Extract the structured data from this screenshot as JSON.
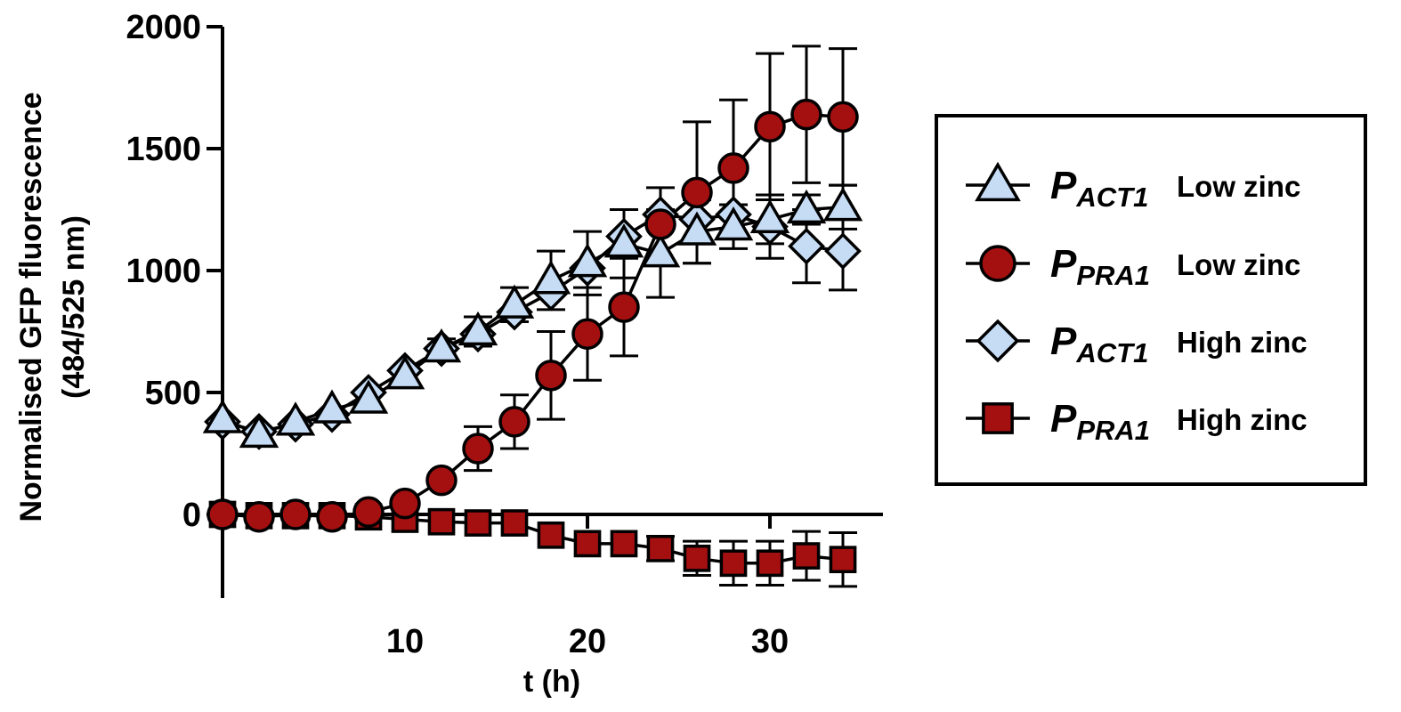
{
  "chart_data": {
    "type": "line",
    "xlabel": "t (h)",
    "ylabel_line1": "Normalised GFP fluorescence",
    "ylabel_line2": "(484/525 nm)",
    "xlim": [
      0,
      35
    ],
    "ylim": [
      -350,
      2000
    ],
    "x_ticks": [
      10,
      20,
      30
    ],
    "y_ticks": [
      0,
      500,
      1000,
      1500,
      2000
    ],
    "grid": false,
    "legend_position": "right",
    "colors": {
      "light_blue": "#c6dcf5",
      "dark_red": "#a40f10",
      "stroke": "#000000"
    },
    "x": [
      0,
      2,
      4,
      6,
      8,
      10,
      12,
      14,
      16,
      18,
      20,
      22,
      24,
      26,
      28,
      30,
      32,
      34
    ],
    "series": [
      {
        "name_main": "P",
        "name_sub": "ACT1",
        "name_cond": "Low zinc",
        "marker": "triangle",
        "color": "#c6dcf5",
        "values": [
          390,
          330,
          380,
          430,
          470,
          570,
          680,
          750,
          860,
          960,
          1030,
          1110,
          1070,
          1160,
          1180,
          1210,
          1250,
          1260
        ],
        "errors": [
          0,
          0,
          0,
          0,
          0,
          0,
          40,
          60,
          70,
          120,
          130,
          140,
          180,
          130,
          90,
          100,
          60,
          90
        ]
      },
      {
        "name_main": "P",
        "name_sub": "PRA1",
        "name_cond": "Low zinc",
        "marker": "circle",
        "color": "#a40f10",
        "values": [
          0,
          -10,
          0,
          -10,
          10,
          45,
          140,
          270,
          380,
          570,
          740,
          850,
          1190,
          1320,
          1420,
          1590,
          1640,
          1630
        ],
        "errors": [
          0,
          0,
          0,
          0,
          0,
          0,
          0,
          90,
          110,
          180,
          190,
          200,
          150,
          290,
          280,
          300,
          280,
          280
        ]
      },
      {
        "name_main": "P",
        "name_sub": "ACT1",
        "name_cond": "High zinc",
        "marker": "diamond",
        "color": "#c6dcf5",
        "values": [
          380,
          340,
          370,
          410,
          500,
          590,
          680,
          740,
          830,
          910,
          1010,
          1140,
          1230,
          1210,
          1230,
          1180,
          1100,
          1080
        ],
        "errors": [
          0,
          0,
          0,
          0,
          0,
          0,
          0,
          0,
          0,
          0,
          0,
          0,
          0,
          0,
          0,
          130,
          150,
          160
        ]
      },
      {
        "name_main": "P",
        "name_sub": "PRA1",
        "name_cond": "High zinc",
        "marker": "square",
        "color": "#a40f10",
        "values": [
          0,
          -5,
          -5,
          -5,
          -10,
          -20,
          -30,
          -35,
          -35,
          -85,
          -120,
          -120,
          -140,
          -180,
          -200,
          -200,
          -170,
          -185
        ],
        "errors": [
          0,
          0,
          0,
          0,
          0,
          0,
          0,
          0,
          0,
          0,
          0,
          0,
          50,
          70,
          90,
          90,
          100,
          110
        ]
      }
    ]
  }
}
